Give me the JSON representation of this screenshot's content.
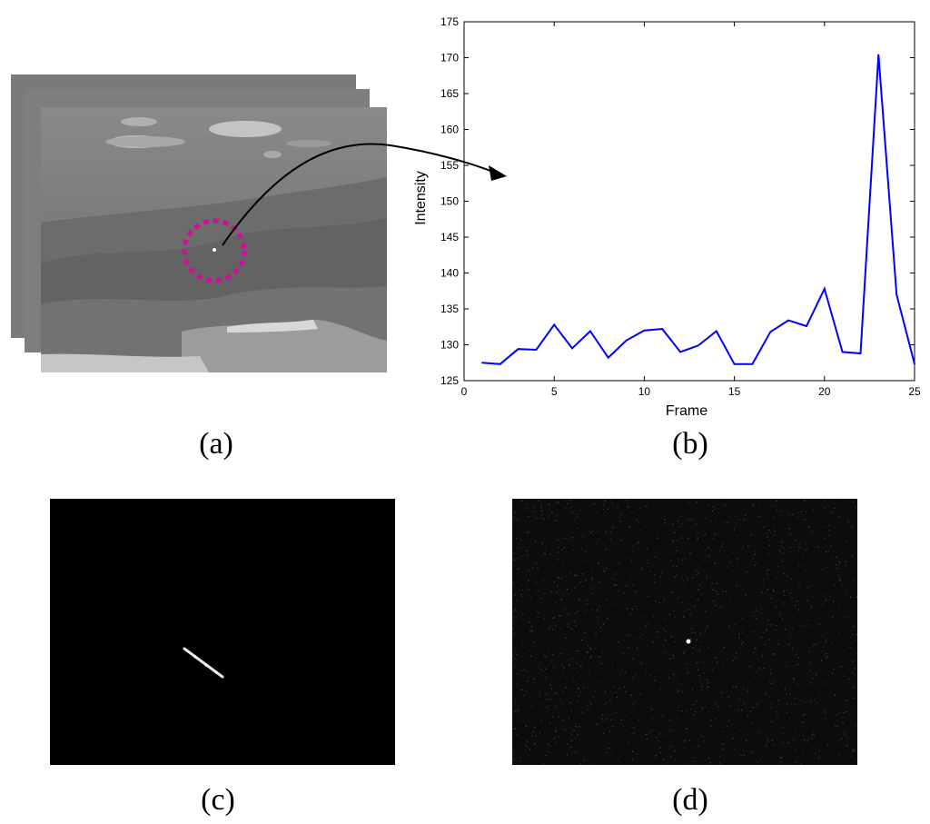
{
  "panels": {
    "a": {
      "label": "(a)"
    },
    "b": {
      "label": "(b)"
    },
    "c": {
      "label": "(c)"
    },
    "d": {
      "label": "(d)"
    }
  },
  "colors": {
    "line": "#0000ff",
    "highlight_circle": "#cc1199",
    "frame_sky": "#7d7d7d",
    "black": "#000000"
  },
  "chart_data": {
    "type": "line",
    "xlabel": "Frame",
    "ylabel": "Intensity",
    "xlim": [
      0,
      25
    ],
    "ylim": [
      125,
      175
    ],
    "xticks": [
      0,
      5,
      10,
      15,
      20,
      25
    ],
    "yticks": [
      125,
      130,
      135,
      140,
      145,
      150,
      155,
      160,
      165,
      170,
      175
    ],
    "grid": false,
    "series": [
      {
        "x": [
          1,
          2,
          3,
          4,
          5,
          6,
          7,
          8,
          9,
          10,
          11,
          12,
          13,
          14,
          15,
          16,
          17,
          18,
          19,
          20,
          21,
          22,
          23,
          24,
          25
        ],
        "y": [
          127.5,
          127.3,
          129.4,
          129.3,
          132.8,
          129.5,
          131.9,
          128.2,
          130.6,
          132.0,
          132.2,
          129.0,
          129.9,
          131.9,
          127.3,
          127.3,
          131.8,
          133.4,
          132.6,
          137.8,
          129.0,
          128.8,
          170.4,
          137.0,
          127.3
        ]
      }
    ]
  }
}
